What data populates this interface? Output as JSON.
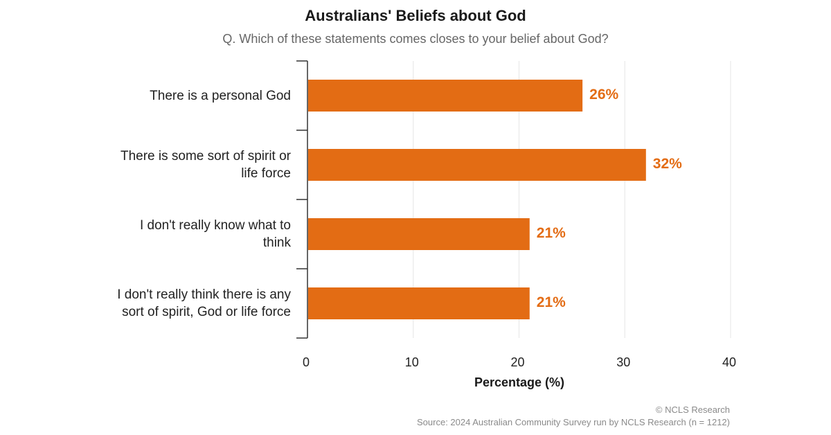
{
  "chart_data": {
    "type": "bar",
    "orientation": "horizontal",
    "title": "Australians' Beliefs about God",
    "subtitle": "Q. Which of these statements comes closes to your belief about God?",
    "categories": [
      [
        "There is a personal God"
      ],
      [
        "There is some sort of spirit or",
        "life force"
      ],
      [
        "I don't really know what to",
        "think"
      ],
      [
        "I don't really think there is any",
        "sort of spirit, God or life force"
      ]
    ],
    "values": [
      26,
      32,
      21,
      21
    ],
    "value_labels": [
      "26%",
      "32%",
      "21%",
      "21%"
    ],
    "xlabel": "Percentage (%)",
    "ylabel": "",
    "xlim": [
      0,
      40
    ],
    "xticks": [
      0,
      10,
      20,
      30,
      40
    ],
    "grid": true,
    "bar_color": "#e36c14",
    "gridline_color": "#e6e6e6",
    "label_color": "#e36c14"
  },
  "footer": {
    "credit": "© NCLS Research",
    "source": "Source: 2024 Australian Community Survey run by NCLS Research (n = 1212)"
  }
}
